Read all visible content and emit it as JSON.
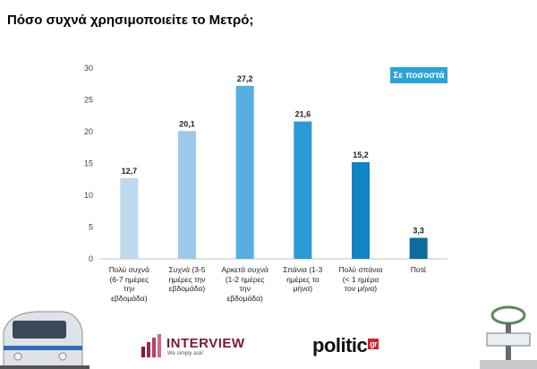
{
  "page": {
    "title": "Πόσο συχνά χρησιμοποιείτε το Μετρό;"
  },
  "badge": "Σε ποσοστά",
  "chart_data": {
    "type": "bar",
    "title": "Πόσο συχνά χρησιμοποιείτε το Μετρό;",
    "categories": [
      "Πολύ συχνά\n(6-7 ημέρες\nτην\nεβδομάδα)",
      "Συχνά (3-5\nημέρες την\nεβδομάδα)",
      "Αρκετά συχνά\n(1-2 ημέρες\nτην\nεβδομάδα)",
      "Σπάνια (1-3\nημέρες το\nμήνα)",
      "Πολύ σπάνια\n(< 1 ημέρα\nτον μήνα)",
      "Ποτέ"
    ],
    "values": [
      12.7,
      20.1,
      27.2,
      21.6,
      15.2,
      3.3
    ],
    "value_labels": [
      "12,7",
      "20,1",
      "27,2",
      "21,6",
      "15,2",
      "3,3"
    ],
    "bar_colors": [
      "#bcd9ee",
      "#9cc9ea",
      "#56aee3",
      "#2a9bd8",
      "#1185c4",
      "#0d6b9e"
    ],
    "y_ticks": [
      "0",
      "5",
      "10",
      "15",
      "20",
      "25",
      "30"
    ],
    "ylim": [
      0,
      30
    ],
    "grid": false,
    "xlabel": "",
    "ylabel": ""
  },
  "logos": {
    "interview_word": "INTERVIEW",
    "interview_tagline": "We simply ask!",
    "politic_word": "politic",
    "politic_suffix": "gr"
  },
  "illustrations": {
    "left": "metro-train-icon",
    "right": "metro-station-sign-icon"
  }
}
